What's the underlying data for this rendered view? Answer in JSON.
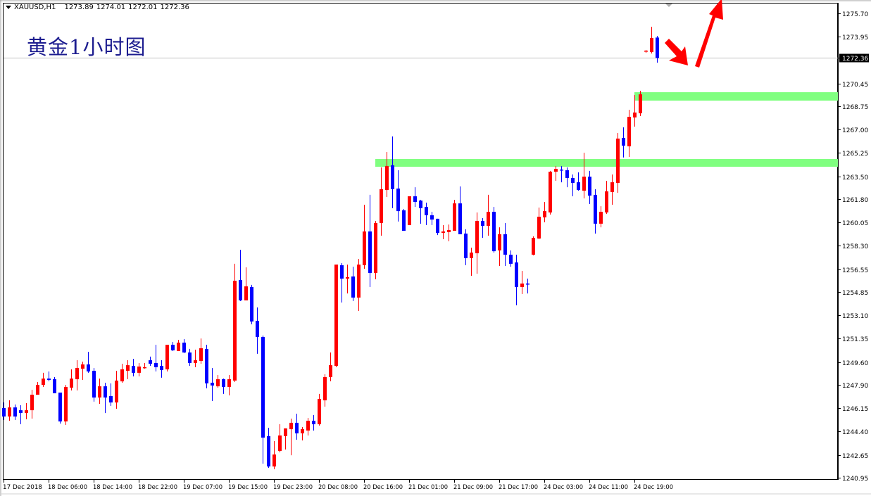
{
  "header": {
    "symbol": "XAUUSD,H1",
    "open": "1273.89",
    "high": "1274.01",
    "low": "1272.01",
    "close": "1272.36"
  },
  "title": "黄金1小时图",
  "colors": {
    "bull": "#ff0000",
    "bear": "#0000ff",
    "zone": "#80ff80",
    "arrow": "#ff0000",
    "current_price_bg": "#000000",
    "grid_line": "#c0c0c0"
  },
  "chart_data": {
    "type": "candlestick",
    "title": "",
    "symbol": "XAUUSD",
    "timeframe": "H1",
    "ylim": [
      1240.95,
      1275.7
    ],
    "y_ticks": [
      "1275.70",
      "1273.95",
      "1272.36",
      "1270.45",
      "1268.75",
      "1267.00",
      "1265.25",
      "1263.50",
      "1261.80",
      "1260.05",
      "1258.30",
      "1256.55",
      "1254.85",
      "1253.10",
      "1251.35",
      "1249.60",
      "1247.90",
      "1246.15",
      "1244.40",
      "1242.65",
      "1240.95"
    ],
    "current_price": "1272.36",
    "x_ticks": [
      {
        "candle": 0,
        "label": "17 Dec 2018"
      },
      {
        "candle": 8,
        "label": "18 Dec 06:00"
      },
      {
        "candle": 16,
        "label": "18 Dec 14:00"
      },
      {
        "candle": 24,
        "label": "18 Dec 22:00"
      },
      {
        "candle": 32,
        "label": "19 Dec 07:00"
      },
      {
        "candle": 40,
        "label": "19 Dec 15:00"
      },
      {
        "candle": 48,
        "label": "19 Dec 23:00"
      },
      {
        "candle": 56,
        "label": "20 Dec 08:00"
      },
      {
        "candle": 64,
        "label": "20 Dec 16:00"
      },
      {
        "candle": 72,
        "label": "21 Dec 01:00"
      },
      {
        "candle": 80,
        "label": "21 Dec 09:00"
      },
      {
        "candle": 88,
        "label": "21 Dec 17:00"
      },
      {
        "candle": 96,
        "label": "24 Dec 03:00"
      },
      {
        "candle": 104,
        "label": "24 Dec 11:00"
      },
      {
        "candle": 112,
        "label": "24 Dec 19:00"
      }
    ],
    "ohlc_fields": [
      "open",
      "high",
      "low",
      "close"
    ],
    "candles": [
      [
        1246.16,
        1246.58,
        1245.27,
        1245.53
      ],
      [
        1245.53,
        1246.74,
        1245.21,
        1246.21
      ],
      [
        1246.21,
        1246.43,
        1245.27,
        1245.53
      ],
      [
        1246.0,
        1246.37,
        1244.95,
        1245.79
      ],
      [
        1245.79,
        1246.53,
        1245.32,
        1246.0
      ],
      [
        1246.0,
        1247.53,
        1245.37,
        1247.16
      ],
      [
        1247.16,
        1248.11,
        1247.16,
        1247.9
      ],
      [
        1247.9,
        1248.8,
        1247.74,
        1248.37
      ],
      [
        1248.37,
        1248.9,
        1248.16,
        1248.27
      ],
      [
        1248.32,
        1248.48,
        1247.27,
        1247.27
      ],
      [
        1247.32,
        1247.32,
        1245.0,
        1245.16
      ],
      [
        1245.16,
        1247.9,
        1244.9,
        1247.74
      ],
      [
        1247.69,
        1249.06,
        1247.48,
        1248.37
      ],
      [
        1248.32,
        1249.74,
        1247.48,
        1249.16
      ],
      [
        1249.11,
        1249.64,
        1248.27,
        1249.43
      ],
      [
        1249.43,
        1250.37,
        1248.8,
        1248.9
      ],
      [
        1248.95,
        1249.16,
        1246.64,
        1246.95
      ],
      [
        1246.95,
        1248.37,
        1246.48,
        1247.79
      ],
      [
        1247.79,
        1248.06,
        1245.79,
        1246.95
      ],
      [
        1247.06,
        1248.01,
        1246.32,
        1246.58
      ],
      [
        1246.58,
        1248.95,
        1246.11,
        1248.22
      ],
      [
        1248.16,
        1249.48,
        1248.06,
        1249.06
      ],
      [
        1248.95,
        1249.74,
        1248.32,
        1249.37
      ],
      [
        1249.32,
        1249.85,
        1248.53,
        1248.8
      ],
      [
        1248.8,
        1249.53,
        1248.53,
        1249.27
      ],
      [
        1249.16,
        1249.53,
        1249.11,
        1249.22
      ],
      [
        1249.74,
        1250.01,
        1249.32,
        1249.48
      ],
      [
        1249.53,
        1250.9,
        1248.9,
        1249.22
      ],
      [
        1249.32,
        1249.74,
        1248.43,
        1249.01
      ],
      [
        1249.06,
        1250.9,
        1248.9,
        1250.9
      ],
      [
        1250.9,
        1251.11,
        1250.43,
        1250.48
      ],
      [
        1250.43,
        1251.27,
        1250.43,
        1251.06
      ],
      [
        1251.06,
        1251.32,
        1250.27,
        1250.32
      ],
      [
        1250.32,
        1250.59,
        1249.32,
        1249.53
      ],
      [
        1249.53,
        1250.53,
        1249.22,
        1249.74
      ],
      [
        1249.69,
        1251.37,
        1249.48,
        1250.64
      ],
      [
        1250.59,
        1250.9,
        1247.64,
        1248.01
      ],
      [
        1248.06,
        1249.16,
        1246.69,
        1247.85
      ],
      [
        1247.79,
        1248.64,
        1247.69,
        1248.32
      ],
      [
        1248.32,
        1248.37,
        1247.22,
        1247.74
      ],
      [
        1247.74,
        1248.64,
        1247.11,
        1248.32
      ],
      [
        1248.22,
        1256.96,
        1248.11,
        1255.69
      ],
      [
        1255.75,
        1258.01,
        1254.17,
        1254.22
      ],
      [
        1254.22,
        1256.69,
        1254.22,
        1255.27
      ],
      [
        1255.22,
        1255.38,
        1252.43,
        1252.64
      ],
      [
        1252.69,
        1253.69,
        1250.22,
        1251.48
      ],
      [
        1251.48,
        1251.59,
        1242.0,
        1243.95
      ],
      [
        1244.06,
        1244.69,
        1241.69,
        1241.79
      ],
      [
        1241.79,
        1243.69,
        1241.58,
        1242.69
      ],
      [
        1242.95,
        1244.95,
        1242.85,
        1244.11
      ],
      [
        1244.06,
        1244.64,
        1243.06,
        1244.64
      ],
      [
        1244.58,
        1245.37,
        1242.63,
        1245.06
      ],
      [
        1245.06,
        1245.74,
        1243.79,
        1244.27
      ],
      [
        1244.27,
        1244.74,
        1243.74,
        1244.58
      ],
      [
        1244.48,
        1245.42,
        1244.11,
        1245.21
      ],
      [
        1245.21,
        1245.64,
        1244.48,
        1244.95
      ],
      [
        1244.95,
        1247.22,
        1244.85,
        1246.85
      ],
      [
        1246.74,
        1248.69,
        1246.27,
        1248.48
      ],
      [
        1248.48,
        1250.32,
        1248.16,
        1249.37
      ],
      [
        1249.32,
        1256.9,
        1249.22,
        1256.9
      ],
      [
        1256.85,
        1257.01,
        1254.06,
        1255.85
      ],
      [
        1255.85,
        1256.9,
        1254.74,
        1255.96
      ],
      [
        1256.01,
        1256.74,
        1254.17,
        1254.43
      ],
      [
        1254.43,
        1257.32,
        1253.43,
        1256.9
      ],
      [
        1256.85,
        1261.38,
        1256.59,
        1259.38
      ],
      [
        1259.38,
        1262.12,
        1255.22,
        1256.27
      ],
      [
        1256.27,
        1260.17,
        1255.8,
        1260.01
      ],
      [
        1260.01,
        1264.17,
        1259.06,
        1262.54
      ],
      [
        1262.48,
        1265.33,
        1261.96,
        1264.27
      ],
      [
        1264.33,
        1266.49,
        1261.12,
        1262.54
      ],
      [
        1262.59,
        1263.96,
        1260.12,
        1260.9
      ],
      [
        1260.96,
        1261.06,
        1259.43,
        1259.43
      ],
      [
        1259.85,
        1262.01,
        1259.85,
        1262.01
      ],
      [
        1262.01,
        1262.69,
        1261.22,
        1261.59
      ],
      [
        1261.69,
        1261.75,
        1259.96,
        1261.12
      ],
      [
        1261.22,
        1261.54,
        1259.85,
        1260.59
      ],
      [
        1260.59,
        1260.85,
        1259.85,
        1260.27
      ],
      [
        1260.33,
        1260.33,
        1259.11,
        1259.27
      ],
      [
        1259.27,
        1259.85,
        1258.8,
        1259.38
      ],
      [
        1259.33,
        1259.9,
        1258.64,
        1259.48
      ],
      [
        1259.43,
        1261.75,
        1259.43,
        1261.48
      ],
      [
        1261.48,
        1262.75,
        1259.17,
        1259.17
      ],
      [
        1259.22,
        1259.54,
        1256.85,
        1257.38
      ],
      [
        1257.38,
        1258.17,
        1256.06,
        1257.8
      ],
      [
        1257.75,
        1260.8,
        1256.22,
        1260.17
      ],
      [
        1260.17,
        1260.38,
        1258.9,
        1259.8
      ],
      [
        1259.8,
        1262.12,
        1259.06,
        1260.85
      ],
      [
        1260.85,
        1261.22,
        1257.8,
        1257.9
      ],
      [
        1257.96,
        1259.69,
        1256.8,
        1259.17
      ],
      [
        1259.17,
        1260.01,
        1256.8,
        1257.64
      ],
      [
        1257.64,
        1257.96,
        1256.74,
        1256.96
      ],
      [
        1257.06,
        1257.64,
        1253.85,
        1255.22
      ],
      [
        1255.22,
        1256.43,
        1254.69,
        1255.48
      ],
      [
        1255.48,
        1255.85,
        1254.74,
        1255.43
      ],
      [
        1257.64,
        1259.01,
        1257.59,
        1258.9
      ],
      [
        1258.85,
        1261.17,
        1258.8,
        1260.48
      ],
      [
        1260.43,
        1261.59,
        1260.06,
        1260.9
      ],
      [
        1260.8,
        1263.91,
        1260.64,
        1263.85
      ],
      [
        1263.85,
        1264.27,
        1263.17,
        1264.06
      ],
      [
        1264.01,
        1264.27,
        1263.06,
        1263.96
      ],
      [
        1263.96,
        1264.17,
        1262.69,
        1263.38
      ],
      [
        1263.38,
        1263.64,
        1262.01,
        1263.01
      ],
      [
        1263.06,
        1263.8,
        1262.43,
        1262.48
      ],
      [
        1262.43,
        1265.27,
        1261.85,
        1263.48
      ],
      [
        1263.48,
        1263.91,
        1261.43,
        1262.06
      ],
      [
        1262.12,
        1262.54,
        1259.22,
        1259.96
      ],
      [
        1259.96,
        1261.27,
        1259.69,
        1260.85
      ],
      [
        1260.8,
        1263.17,
        1260.69,
        1262.38
      ],
      [
        1262.33,
        1263.64,
        1261.38,
        1263.06
      ],
      [
        1263.01,
        1266.75,
        1262.27,
        1266.33
      ],
      [
        1266.38,
        1267.17,
        1264.91,
        1265.8
      ],
      [
        1265.75,
        1268.49,
        1264.96,
        1267.96
      ],
      [
        1267.91,
        1269.59,
        1267.22,
        1268.28
      ],
      [
        1268.22,
        1269.91,
        1268.01,
        1269.64
      ],
      [
        1272.86,
        1272.96,
        1272.75,
        1272.91
      ],
      [
        1272.8,
        1274.7,
        1272.7,
        1273.86
      ],
      [
        1273.89,
        1274.01,
        1272.01,
        1272.36
      ]
    ],
    "zones": [
      {
        "name": "resistance-zone-upper",
        "start_candle": 112,
        "price_top": 1269.8,
        "price_bottom": 1269.17
      },
      {
        "name": "resistance-zone-lower",
        "start_candle": 66,
        "price_top": 1264.8,
        "price_bottom": 1264.22
      }
    ],
    "annotations": [
      "arrow-down-right",
      "arrow-up"
    ],
    "grid": false,
    "legend": "none"
  }
}
